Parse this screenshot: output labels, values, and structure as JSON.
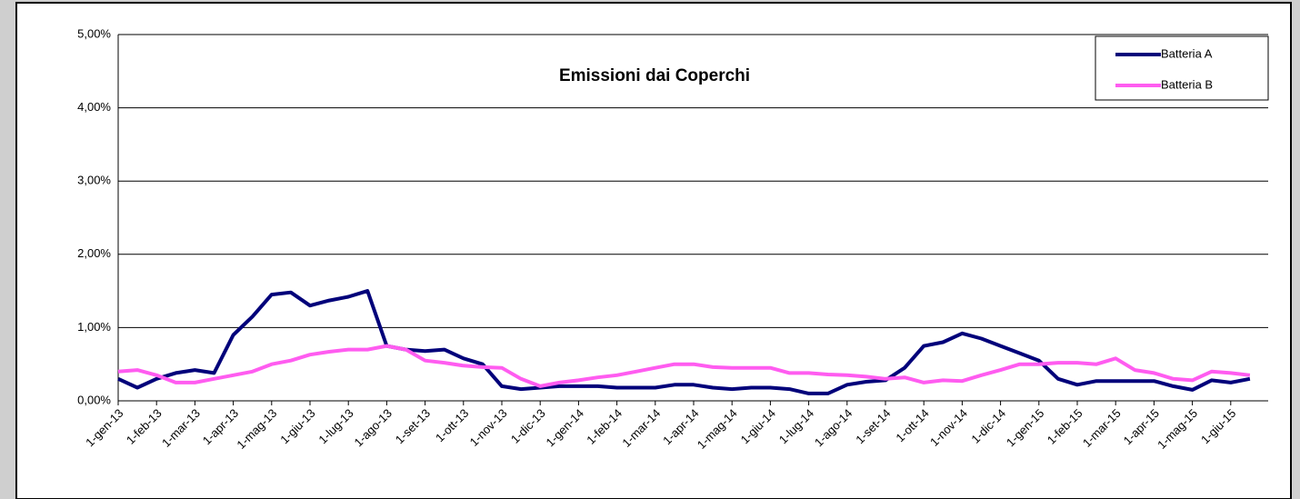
{
  "chart_data": {
    "type": "line",
    "title": "Emissioni dai Coperchi",
    "categories": [
      "1-gen-13",
      null,
      "1-feb-13",
      null,
      "1-mar-13",
      null,
      "1-apr-13",
      null,
      "1-mag-13",
      null,
      "1-giu-13",
      null,
      "1-lug-13",
      null,
      "1-ago-13",
      null,
      "1-set-13",
      null,
      "1-ott-13",
      null,
      "1-nov-13",
      null,
      "1-dic-13",
      null,
      "1-gen-14",
      null,
      "1-feb-14",
      null,
      "1-mar-14",
      null,
      "1-apr-14",
      null,
      "1-mag-14",
      null,
      "1-giu-14",
      null,
      "1-lug-14",
      null,
      "1-ago-14",
      null,
      "1-set-14",
      null,
      "1-ott-14",
      null,
      "1-nov-14",
      null,
      "1-dic-14",
      null,
      "1-gen-15",
      null,
      "1-feb-15",
      null,
      "1-mar-15",
      null,
      "1-apr-15",
      null,
      "1-mag-15",
      null,
      "1-giu-15",
      null
    ],
    "series": [
      {
        "name": "Batteria A",
        "color": "#00007a",
        "values": [
          0.3,
          0.18,
          0.3,
          0.38,
          0.42,
          0.38,
          0.9,
          1.15,
          1.45,
          1.48,
          1.3,
          1.37,
          1.42,
          1.5,
          0.75,
          0.7,
          0.68,
          0.7,
          0.58,
          0.5,
          0.2,
          0.16,
          0.18,
          0.2,
          0.2,
          0.2,
          0.18,
          0.18,
          0.18,
          0.22,
          0.22,
          0.18,
          0.16,
          0.18,
          0.18,
          0.16,
          0.1,
          0.1,
          0.22,
          0.26,
          0.28,
          0.45,
          0.75,
          0.8,
          0.92,
          0.85,
          0.75,
          0.65,
          0.55,
          0.3,
          0.22,
          0.27,
          0.27,
          0.27,
          0.27,
          0.2,
          0.15,
          0.28,
          0.25,
          0.3
        ]
      },
      {
        "name": "Batteria B",
        "color": "#ff5cf0",
        "values": [
          0.4,
          0.42,
          0.35,
          0.25,
          0.25,
          0.3,
          0.35,
          0.4,
          0.5,
          0.55,
          0.63,
          0.67,
          0.7,
          0.7,
          0.75,
          0.7,
          0.55,
          0.52,
          0.48,
          0.46,
          0.45,
          0.3,
          0.2,
          0.25,
          0.28,
          0.32,
          0.35,
          0.4,
          0.45,
          0.5,
          0.5,
          0.46,
          0.45,
          0.45,
          0.45,
          0.38,
          0.38,
          0.36,
          0.35,
          0.33,
          0.3,
          0.32,
          0.25,
          0.28,
          0.27,
          0.35,
          0.42,
          0.5,
          0.5,
          0.52,
          0.52,
          0.5,
          0.58,
          0.42,
          0.38,
          0.3,
          0.28,
          0.4,
          0.38,
          0.35
        ]
      }
    ],
    "ylim": [
      0,
      5
    ],
    "yticks": [
      {
        "value": 0,
        "label": "0,00%"
      },
      {
        "value": 1,
        "label": "1,00%"
      },
      {
        "value": 2,
        "label": "2,00%"
      },
      {
        "value": 3,
        "label": "3,00%"
      },
      {
        "value": 4,
        "label": "4,00%"
      },
      {
        "value": 5,
        "label": "5,00%"
      }
    ],
    "grid": true,
    "legend": "upper right"
  }
}
